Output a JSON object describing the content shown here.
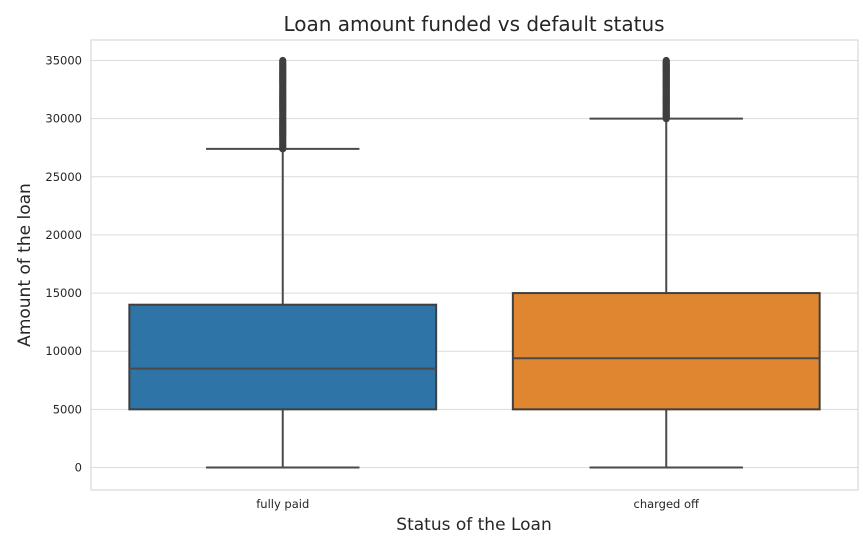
{
  "chart_data": {
    "type": "boxplot",
    "title": "Loan amount funded vs default status",
    "xlabel": "Status of the Loan",
    "ylabel": "Amount of the loan",
    "ylim": [
      -1800,
      36300
    ],
    "yticks": [
      0,
      5000,
      10000,
      15000,
      20000,
      25000,
      30000,
      35000
    ],
    "grid": true,
    "categories": [
      "fully paid",
      "charged off"
    ],
    "boxes": [
      {
        "category": "fully paid",
        "color": "#2e74a6",
        "whisker_low": 0,
        "q1": 5000,
        "median": 8500,
        "q3": 14000,
        "whisker_high": 27400,
        "outlier_range": [
          27400,
          35000
        ]
      },
      {
        "category": "charged off",
        "color": "#e08530",
        "whisker_low": 0,
        "q1": 5000,
        "median": 9400,
        "q3": 15000,
        "whisker_high": 30000,
        "outlier_range": [
          30000,
          35000
        ]
      }
    ]
  }
}
